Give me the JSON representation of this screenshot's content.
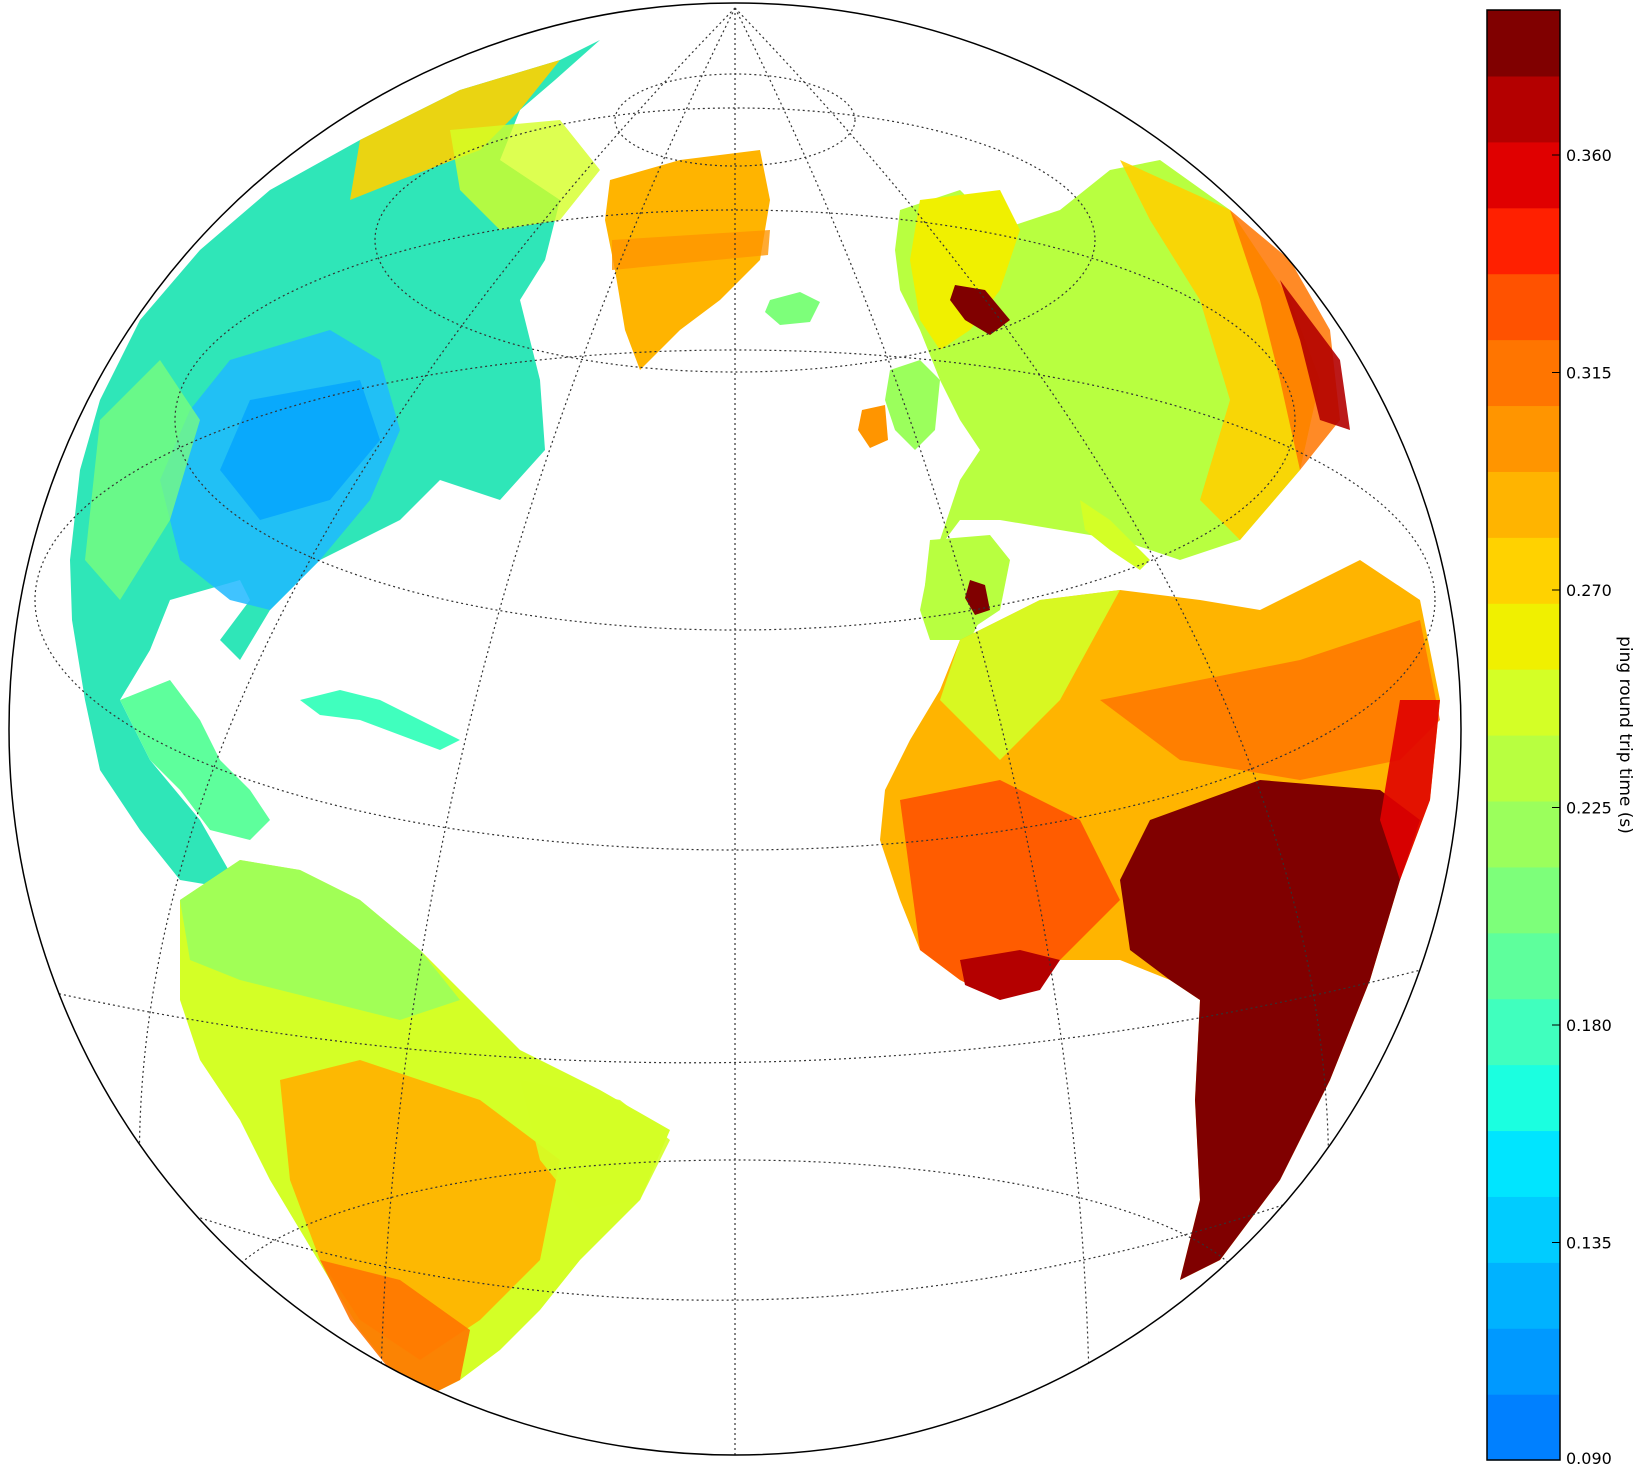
{
  "map": {
    "projection": "orthographic",
    "graticule": "dotted",
    "regions": [
      {
        "name": "North America",
        "value_description": "mostly 0.135-0.225"
      },
      {
        "name": "Greenland",
        "value_description": "mostly 0.270-0.315"
      },
      {
        "name": "South America",
        "value_description": "0.225-0.315"
      },
      {
        "name": "Europe",
        "value_description": "0.200-0.270, hotspots up to 0.380"
      },
      {
        "name": "Africa",
        "value_description": "0.270-0.390, highest in central and southern Africa"
      }
    ]
  },
  "colorbar": {
    "label": "ping round trip time (s)",
    "ticks": [
      "0.090",
      "0.135",
      "0.180",
      "0.225",
      "0.270",
      "0.315",
      "0.360"
    ],
    "min": 0.09,
    "max": 0.39,
    "levels": 21,
    "colors": [
      "#0080ff",
      "#0099ff",
      "#00b2ff",
      "#00ccff",
      "#00e5ff",
      "#1bffe0",
      "#40ffbe",
      "#5eff9c",
      "#7dff7a",
      "#9bff5c",
      "#b8ff40",
      "#d4ff26",
      "#f0f000",
      "#ffd200",
      "#ffb400",
      "#ff9500",
      "#ff7500",
      "#ff5200",
      "#ff2000",
      "#e00000",
      "#b40000",
      "#800000"
    ]
  }
}
